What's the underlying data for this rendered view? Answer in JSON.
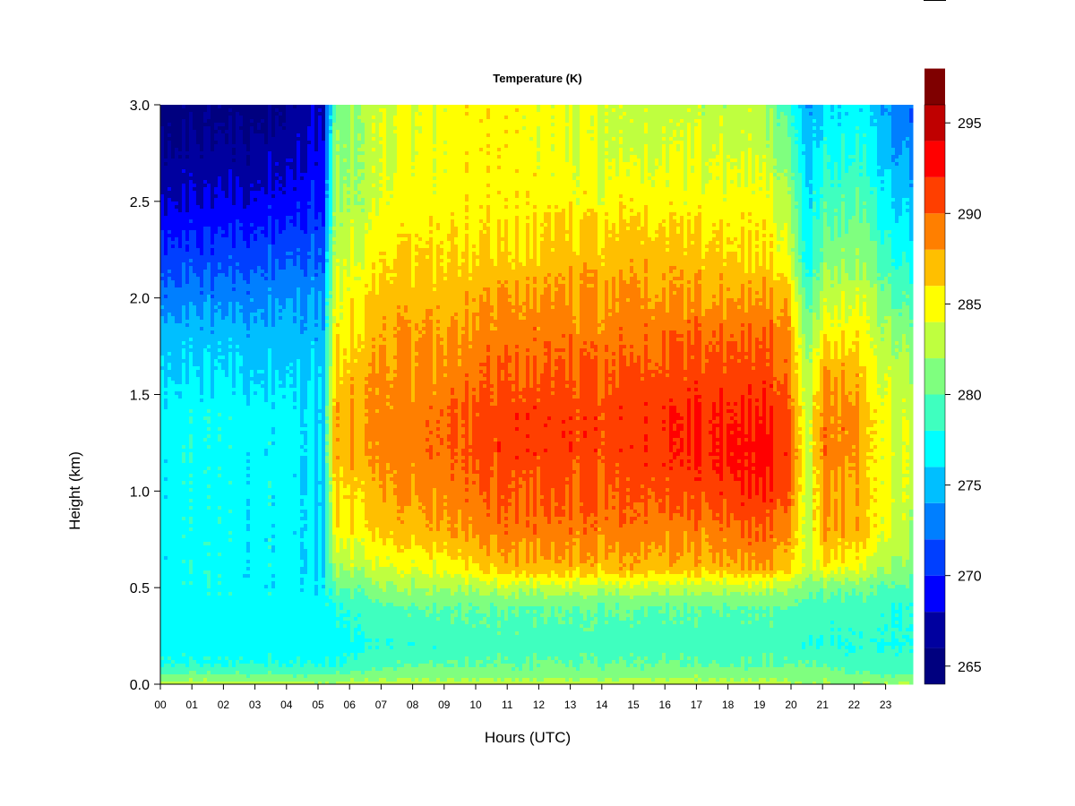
{
  "chart_data": {
    "type": "heatmap",
    "title": "Temperature (K)",
    "xlabel": "Hours (UTC)",
    "ylabel": "Height (km)",
    "x_ticks": [
      "00",
      "01",
      "02",
      "03",
      "04",
      "05",
      "06",
      "07",
      "08",
      "09",
      "10",
      "11",
      "12",
      "13",
      "14",
      "15",
      "16",
      "17",
      "18",
      "19",
      "20",
      "21",
      "22",
      "23"
    ],
    "y_ticks": [
      "0.0",
      "0.5",
      "1.0",
      "1.5",
      "2.0",
      "2.5",
      "3.0"
    ],
    "xlim": [
      0,
      23.9
    ],
    "ylim": [
      0,
      3.0
    ],
    "colorbar": {
      "range": [
        264,
        296
      ],
      "step": 2,
      "ticks": [
        "265",
        "270",
        "275",
        "280",
        "285",
        "290",
        "295"
      ],
      "colors": [
        "#00007F",
        "#00009F",
        "#0000FF",
        "#003FFF",
        "#007FFF",
        "#00BFFF",
        "#00FFFF",
        "#3FFFBF",
        "#7FFF7F",
        "#BFFF3F",
        "#FFFF00",
        "#FFBF00",
        "#FF7F00",
        "#FF3F00",
        "#FF0000",
        "#BF0000",
        "#7F0000"
      ]
    },
    "profile_heights_km": [
      0.0,
      0.05,
      0.1,
      0.2,
      0.4,
      0.5,
      0.6,
      0.8,
      1.0,
      1.2,
      1.4,
      1.6,
      1.8,
      2.0,
      2.2,
      2.5,
      2.8,
      3.0
    ],
    "profiles": [
      {
        "hour": 0,
        "temps": [
          283,
          280,
          278,
          277,
          277,
          277,
          277,
          277,
          277,
          277,
          277,
          276,
          275,
          273,
          271,
          268,
          266,
          265
        ]
      },
      {
        "hour": 2,
        "temps": [
          283,
          280,
          278,
          277,
          277,
          277,
          277,
          277,
          277,
          277,
          277,
          276,
          275,
          273,
          271,
          268,
          266,
          265
        ]
      },
      {
        "hour": 4,
        "temps": [
          283,
          280,
          278,
          277,
          277,
          277,
          277,
          277,
          277,
          277,
          277,
          276,
          275,
          274,
          272,
          269,
          267,
          266
        ]
      },
      {
        "hour": 5.2,
        "temps": [
          282,
          280,
          278,
          277,
          277,
          277,
          276,
          276,
          276,
          276,
          276,
          276,
          275,
          274,
          272,
          270,
          269,
          268
        ]
      },
      {
        "hour": 5.5,
        "temps": [
          282,
          280,
          278,
          277,
          278,
          280,
          282,
          285,
          286,
          287,
          287,
          286,
          285,
          284,
          283,
          282,
          281,
          280
        ]
      },
      {
        "hour": 6.5,
        "temps": [
          283,
          281,
          279,
          278,
          279,
          281,
          283,
          286,
          287,
          288,
          288,
          288,
          287,
          286,
          285,
          283,
          283,
          283
        ]
      },
      {
        "hour": 8,
        "temps": [
          283,
          281,
          280,
          278,
          280,
          282,
          284,
          287,
          288,
          289,
          289,
          288,
          288,
          287,
          286,
          285,
          284,
          284
        ]
      },
      {
        "hour": 9.5,
        "temps": [
          283,
          281,
          280,
          279,
          280,
          282,
          285,
          288,
          289,
          290,
          290,
          289,
          288,
          287,
          286,
          285,
          285,
          285
        ]
      },
      {
        "hour": 11,
        "temps": [
          283,
          281,
          280,
          279,
          280,
          283,
          287,
          289,
          290,
          291,
          291,
          290,
          289,
          288,
          286,
          285,
          285,
          285
        ]
      },
      {
        "hour": 13,
        "temps": [
          283,
          281,
          280,
          279,
          280,
          283,
          287,
          289,
          290,
          291,
          291,
          290,
          289,
          288,
          287,
          285,
          284,
          284
        ]
      },
      {
        "hour": 15,
        "temps": [
          283,
          281,
          280,
          279,
          280,
          283,
          287,
          289,
          290,
          291,
          291,
          290,
          289,
          288,
          287,
          285,
          283,
          283
        ]
      },
      {
        "hour": 17,
        "temps": [
          283,
          281,
          280,
          279,
          280,
          283,
          287,
          289,
          291,
          292,
          292,
          291,
          290,
          288,
          287,
          285,
          284,
          283
        ]
      },
      {
        "hour": 19,
        "temps": [
          283,
          281,
          280,
          279,
          280,
          283,
          288,
          290,
          292,
          293,
          292,
          291,
          290,
          288,
          286,
          285,
          283,
          283
        ]
      },
      {
        "hour": 19.9,
        "temps": [
          283,
          281,
          280,
          279,
          280,
          283,
          287,
          289,
          291,
          292,
          291,
          290,
          289,
          288,
          285,
          283,
          281,
          279
        ]
      },
      {
        "hour": 20.5,
        "temps": [
          282,
          281,
          280,
          278,
          279,
          281,
          283,
          283,
          283,
          283,
          283,
          282,
          281,
          279,
          277,
          276,
          275,
          274
        ]
      },
      {
        "hour": 21,
        "temps": [
          282,
          281,
          280,
          278,
          279,
          281,
          285,
          288,
          288,
          289,
          289,
          288,
          285,
          283,
          281,
          279,
          277,
          276
        ]
      },
      {
        "hour": 22,
        "temps": [
          282,
          280,
          279,
          278,
          279,
          281,
          285,
          288,
          288,
          289,
          289,
          288,
          286,
          284,
          282,
          280,
          278,
          277
        ]
      },
      {
        "hour": 22.4,
        "temps": [
          282,
          280,
          279,
          278,
          279,
          280,
          283,
          286,
          286,
          286,
          286,
          285,
          284,
          283,
          281,
          279,
          277,
          276
        ]
      },
      {
        "hour": 23.3,
        "temps": [
          282,
          280,
          279,
          278,
          278,
          280,
          282,
          284,
          284,
          284,
          284,
          283,
          282,
          280,
          278,
          276,
          274,
          273
        ]
      },
      {
        "hour": 23.9,
        "temps": [
          282,
          280,
          279,
          278,
          278,
          279,
          281,
          282,
          283,
          283,
          283,
          282,
          281,
          279,
          277,
          275,
          273,
          272
        ]
      }
    ]
  }
}
